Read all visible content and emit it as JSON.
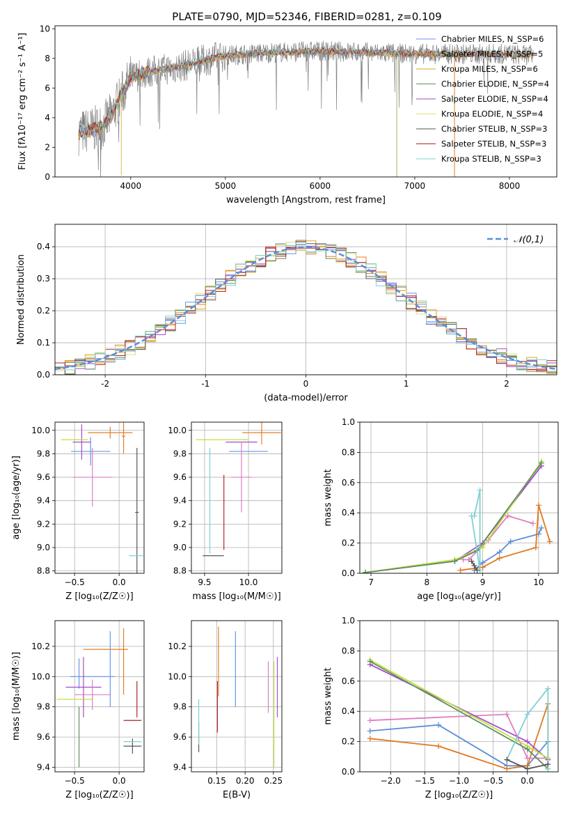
{
  "title": "PLATE=0790, MJD=52346, FIBERID=0281, z=0.109",
  "chart_data": [
    {
      "id": "spectrum",
      "type": "line",
      "xlabel": "wavelength [Angstrom, rest frame]",
      "ylabel": "Flux [fλ10⁻¹⁷ erg cm⁻² s⁻¹ A⁻¹]",
      "xlim": [
        3200,
        8500
      ],
      "ylim": [
        0,
        10.2
      ],
      "xticks": [
        4000,
        5000,
        6000,
        7000,
        8000
      ],
      "yticks": [
        0,
        2,
        4,
        6,
        8,
        10
      ],
      "grid": false,
      "legend_position": "upper-right",
      "data_continuum": {
        "x": [
          3450,
          3600,
          3700,
          3800,
          3900,
          4000,
          4200,
          4500,
          4800,
          5000,
          5500,
          6000,
          6500,
          7000,
          7500,
          8000,
          8250
        ],
        "y": [
          3.0,
          3.2,
          3.4,
          4.2,
          5.5,
          6.7,
          7.1,
          7.4,
          7.9,
          8.2,
          8.4,
          8.5,
          8.4,
          8.3,
          8.3,
          8.3,
          8.2
        ]
      },
      "series": [
        {
          "name": "Chabrier MILES, N_SSP=6",
          "color": "#6495ed"
        },
        {
          "name": "Salpeter MILES, N_SSP=5",
          "color": "#e67e22"
        },
        {
          "name": "Kroupa MILES, N_SSP=6",
          "color": "#daa520"
        },
        {
          "name": "Chabrier ELODIE, N_SSP=4",
          "color": "#5f8f5f"
        },
        {
          "name": "Salpeter ELODIE, N_SSP=4",
          "color": "#a64ac9"
        },
        {
          "name": "Kroupa ELODIE, N_SSP=4",
          "color": "#e0e070"
        },
        {
          "name": "Chabrier STELIB, N_SSP=3",
          "color": "#555555"
        },
        {
          "name": "Salpeter STELIB, N_SSP=3",
          "color": "#b22222"
        },
        {
          "name": "Kroupa STELIB, N_SSP=3",
          "color": "#80d0d0"
        }
      ]
    },
    {
      "id": "residuals",
      "type": "line",
      "xlabel": "(data-model)/error",
      "ylabel": "Normed distribution",
      "xlim": [
        -2.5,
        2.5
      ],
      "ylim": [
        0,
        0.47
      ],
      "xticks": [
        -2,
        -1,
        0,
        1,
        2
      ],
      "yticks": [
        0.0,
        0.1,
        0.2,
        0.3,
        0.4
      ],
      "grid": true,
      "legend": "𝒩(0,1)",
      "legend_position": "upper-right",
      "gaussian_color": "#5b8dd9"
    },
    {
      "id": "age_vs_Z",
      "type": "scatter",
      "xlabel": "Z [log₁₀(Z/Z☉)]",
      "ylabel": "age  [log₁₀(age/yr)]",
      "xlim": [
        -0.72,
        0.28
      ],
      "ylim": [
        8.78,
        10.07
      ],
      "xticks": [
        -0.5,
        0.0
      ],
      "yticks": [
        8.8,
        9.0,
        9.2,
        9.4,
        9.6,
        9.8,
        10.0
      ],
      "grid": true,
      "points": [
        {
          "color": "#6495ed",
          "x": -0.32,
          "y": 9.82,
          "xerr": 0.22,
          "yerr": 0.12
        },
        {
          "color": "#e67e22",
          "x": -0.1,
          "y": 9.98,
          "xerr": 0.25,
          "yerr": 0.05
        },
        {
          "color": "#e67e22",
          "x": 0.05,
          "y": 9.95,
          "xerr": 0.02,
          "yerr": 0.15
        },
        {
          "color": "#a64ac9",
          "x": -0.42,
          "y": 9.9,
          "xerr": 0.1,
          "yerr": 0.15
        },
        {
          "color": "#e07cc0",
          "x": -0.3,
          "y": 9.6,
          "xerr": 0.22,
          "yerr": 0.25
        },
        {
          "color": "#c0e040",
          "x": -0.5,
          "y": 9.92,
          "xerr": 0.15,
          "yerr": 0.0
        },
        {
          "color": "#555555",
          "x": 0.2,
          "y": 9.3,
          "xerr": 0.02,
          "yerr": 0.55
        },
        {
          "color": "#80d0d0",
          "x": 0.19,
          "y": 8.93,
          "xerr": 0.08,
          "yerr": 0.0
        }
      ]
    },
    {
      "id": "age_vs_mass",
      "type": "scatter",
      "xlabel": "mass [log₁₀(M/M☉)]",
      "xlim": [
        9.35,
        10.38
      ],
      "ylim": [
        8.78,
        10.07
      ],
      "xticks": [
        9.5,
        10.0
      ],
      "yticks": [
        8.8,
        9.0,
        9.2,
        9.4,
        9.6,
        9.8,
        10.0
      ],
      "grid": true,
      "points": [
        {
          "color": "#6495ed",
          "x": 10.0,
          "y": 9.82,
          "xerr": 0.22,
          "yerr": 0.0
        },
        {
          "color": "#e67e22",
          "x": 10.15,
          "y": 9.98,
          "xerr": 0.22,
          "yerr": 0.1
        },
        {
          "color": "#a64ac9",
          "x": 9.92,
          "y": 9.9,
          "xerr": 0.18,
          "yerr": 0.0
        },
        {
          "color": "#e07cc0",
          "x": 9.92,
          "y": 9.6,
          "xerr": 0.12,
          "yerr": 0.3
        },
        {
          "color": "#c0e040",
          "x": 9.7,
          "y": 9.92,
          "xerr": 0.3,
          "yerr": 0.0
        },
        {
          "color": "#b22222",
          "x": 9.72,
          "y": 9.3,
          "xerr": 0.0,
          "yerr": 0.32
        },
        {
          "color": "#555555",
          "x": 9.6,
          "y": 8.93,
          "xerr": 0.12,
          "yerr": 0.0
        },
        {
          "color": "#80d0d0",
          "x": 9.56,
          "y": 9.4,
          "xerr": 0.0,
          "yerr": 0.45
        }
      ]
    },
    {
      "id": "weight_vs_age",
      "type": "line",
      "xlabel": "age  [log₁₀(age/yr)]",
      "ylabel": "mass weight",
      "xlim": [
        6.8,
        10.35
      ],
      "ylim": [
        0,
        1.0
      ],
      "xticks": [
        7,
        8,
        9,
        10
      ],
      "yticks": [
        0.0,
        0.2,
        0.4,
        0.6,
        0.8,
        1.0
      ],
      "grid": true,
      "series": [
        {
          "color": "#5b8dd9",
          "x": [
            8.85,
            9.0,
            9.3,
            9.5,
            10.0,
            10.05
          ],
          "y": [
            0.02,
            0.07,
            0.14,
            0.21,
            0.26,
            0.3
          ]
        },
        {
          "color": "#e07820",
          "x": [
            8.6,
            9.0,
            9.3,
            9.95,
            10.0,
            10.2
          ],
          "y": [
            0.02,
            0.04,
            0.1,
            0.17,
            0.45,
            0.21
          ]
        },
        {
          "color": "#e07cc0",
          "x": [
            8.65,
            8.75,
            9.1,
            9.45,
            9.9
          ],
          "y": [
            0.09,
            0.09,
            0.22,
            0.38,
            0.33
          ]
        },
        {
          "color": "#a64ac9",
          "x": [
            6.9,
            8.5,
            9.0,
            10.05
          ],
          "y": [
            0.005,
            0.08,
            0.2,
            0.71
          ]
        },
        {
          "color": "#c0e040",
          "x": [
            6.9,
            8.5,
            9.0,
            10.05
          ],
          "y": [
            0.005,
            0.09,
            0.17,
            0.74
          ]
        },
        {
          "color": "#5f8f5f",
          "x": [
            6.9,
            8.5,
            8.9,
            10.05
          ],
          "y": [
            0.005,
            0.08,
            0.15,
            0.73
          ]
        },
        {
          "color": "#80d0d0",
          "x": [
            8.85,
            8.95,
            8.95,
            8.8
          ],
          "y": [
            0.38,
            0.55,
            0.02,
            0.38
          ]
        },
        {
          "color": "#555555",
          "x": [
            8.8,
            8.9,
            8.85
          ],
          "y": [
            0.08,
            0.02,
            0.05
          ]
        }
      ]
    },
    {
      "id": "mass_vs_Z",
      "type": "scatter",
      "xlabel": "Z [log₁₀(Z/Z☉)]",
      "ylabel": "mass [log₁₀(M/M☉)]",
      "xlim": [
        -0.72,
        0.28
      ],
      "ylim": [
        9.37,
        10.37
      ],
      "xticks": [
        -0.5,
        0.0
      ],
      "yticks": [
        9.4,
        9.6,
        9.8,
        10.0,
        10.2
      ],
      "grid": true,
      "points": [
        {
          "color": "#6495ed",
          "x": -0.3,
          "y": 10.0,
          "xerr": 0.25,
          "yerr": 0.0
        },
        {
          "color": "#6495ed",
          "x": -0.1,
          "y": 10.05,
          "xerr": 0.0,
          "yerr": 0.25
        },
        {
          "color": "#6495ed",
          "x": -0.45,
          "y": 10.02,
          "xerr": 0.0,
          "yerr": 0.1
        },
        {
          "color": "#e67e22",
          "x": -0.15,
          "y": 10.18,
          "xerr": 0.25,
          "yerr": 0.0
        },
        {
          "color": "#e67e22",
          "x": 0.05,
          "y": 10.1,
          "xerr": 0.0,
          "yerr": 0.22
        },
        {
          "color": "#a64ac9",
          "x": -0.4,
          "y": 9.93,
          "xerr": 0.2,
          "yerr": 0.2
        },
        {
          "color": "#e07cc0",
          "x": -0.3,
          "y": 9.88,
          "xerr": 0.2,
          "yerr": 0.1
        },
        {
          "color": "#c0e040",
          "x": -0.5,
          "y": 9.85,
          "xerr": 0.2,
          "yerr": 0.0
        },
        {
          "color": "#5f8f5f",
          "x": -0.45,
          "y": 9.6,
          "xerr": 0.0,
          "yerr": 0.2
        },
        {
          "color": "#b22222",
          "x": 0.15,
          "y": 9.71,
          "xerr": 0.1,
          "yerr": 0.0
        },
        {
          "color": "#b22222",
          "x": 0.2,
          "y": 9.85,
          "xerr": 0.0,
          "yerr": 0.12
        },
        {
          "color": "#555555",
          "x": 0.15,
          "y": 9.54,
          "xerr": 0.1,
          "yerr": 0.05
        },
        {
          "color": "#80d0d0",
          "x": 0.15,
          "y": 9.57,
          "xerr": 0.1,
          "yerr": 0.0
        }
      ]
    },
    {
      "id": "mass_vs_ebv",
      "type": "scatter",
      "xlabel": "E(B-V)",
      "xlim": [
        0.105,
        0.265
      ],
      "ylim": [
        9.37,
        10.37
      ],
      "xticks": [
        0.15,
        0.2,
        0.25
      ],
      "yticks": [
        9.4,
        9.6,
        9.8,
        10.0,
        10.2
      ],
      "grid": true,
      "points": [
        {
          "color": "#6495ed",
          "x": 0.183,
          "y": 10.05,
          "xerr": 0.0,
          "yerr": 0.25
        },
        {
          "color": "#e67e22",
          "x": 0.153,
          "y": 10.1,
          "xerr": 0.0,
          "yerr": 0.23
        },
        {
          "color": "#b22222",
          "x": 0.151,
          "y": 9.8,
          "xerr": 0.0,
          "yerr": 0.17
        },
        {
          "color": "#a64ac9",
          "x": 0.257,
          "y": 9.93,
          "xerr": 0.0,
          "yerr": 0.2
        },
        {
          "color": "#e07cc0",
          "x": 0.241,
          "y": 9.93,
          "xerr": 0.0,
          "yerr": 0.17
        },
        {
          "color": "#c0e040",
          "x": 0.251,
          "y": 9.75,
          "xerr": 0.0,
          "yerr": 0.35
        },
        {
          "color": "#555555",
          "x": 0.118,
          "y": 9.6,
          "xerr": 0.0,
          "yerr": 0.1
        },
        {
          "color": "#80d0d0",
          "x": 0.118,
          "y": 9.7,
          "xerr": 0.0,
          "yerr": 0.15
        }
      ]
    },
    {
      "id": "weight_vs_Z",
      "type": "line",
      "xlabel": "Z [log₁₀(Z/Z☉)]",
      "ylabel": "mass weight",
      "xlim": [
        -2.45,
        0.45
      ],
      "ylim": [
        0,
        1.0
      ],
      "xticks": [
        -2.0,
        -1.5,
        -1.0,
        -0.5,
        0.0
      ],
      "yticks": [
        0.0,
        0.2,
        0.4,
        0.6,
        0.8,
        1.0
      ],
      "grid": true,
      "series": [
        {
          "color": "#5b8dd9",
          "x": [
            -2.3,
            -1.3,
            -0.3,
            0.0,
            0.3
          ],
          "y": [
            0.27,
            0.31,
            0.04,
            0.04,
            0.2
          ]
        },
        {
          "color": "#e07820",
          "x": [
            -2.3,
            -1.3,
            -0.3,
            0.0,
            0.3,
            0.3
          ],
          "y": [
            0.22,
            0.17,
            0.02,
            0.04,
            0.45,
            0.08
          ]
        },
        {
          "color": "#e07cc0",
          "x": [
            -2.3,
            -0.3,
            0.0,
            0.3
          ],
          "y": [
            0.34,
            0.38,
            0.09,
            0.09
          ]
        },
        {
          "color": "#a64ac9",
          "x": [
            -2.3,
            0.0,
            0.3
          ],
          "y": [
            0.71,
            0.2,
            0.08
          ]
        },
        {
          "color": "#c0e040",
          "x": [
            -2.3,
            0.0,
            0.3
          ],
          "y": [
            0.74,
            0.17,
            0.09
          ]
        },
        {
          "color": "#5f8f5f",
          "x": [
            -2.3,
            0.0,
            0.3
          ],
          "y": [
            0.73,
            0.15,
            0.02
          ]
        },
        {
          "color": "#80d0d0",
          "x": [
            -0.3,
            0.0,
            0.3,
            0.3
          ],
          "y": [
            0.08,
            0.38,
            0.55,
            0.02
          ]
        },
        {
          "color": "#555555",
          "x": [
            -0.3,
            0.0,
            0.3
          ],
          "y": [
            0.08,
            0.02,
            0.05
          ]
        }
      ]
    }
  ]
}
